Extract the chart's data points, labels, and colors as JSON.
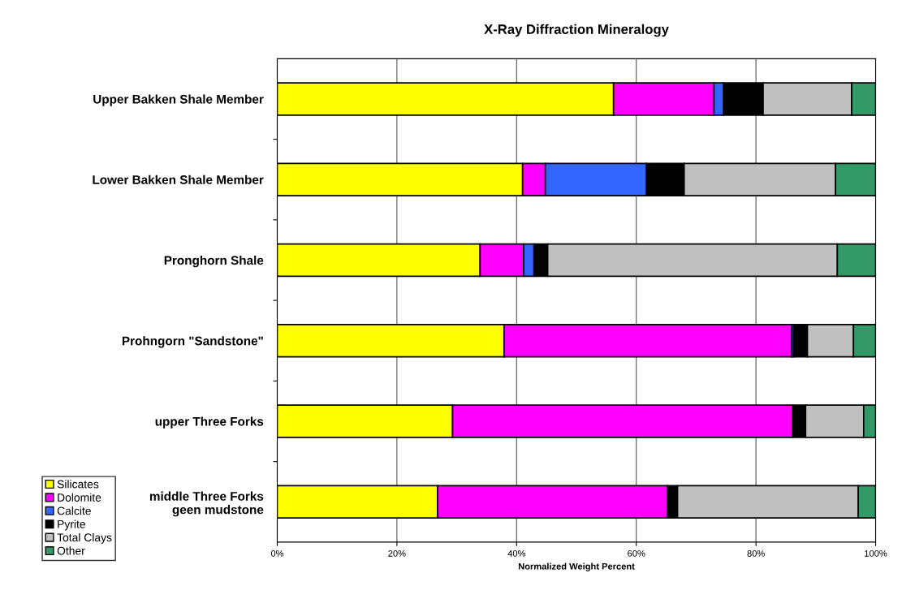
{
  "chart_data": {
    "type": "bar",
    "orientation": "horizontal",
    "stacked": true,
    "title": "X-Ray Diffraction Mineralogy",
    "xlabel": "Normalized Weight Percent",
    "categories": [
      "Upper Bakken Shale Member",
      "Lower Bakken Shale Member",
      "Pronghorn Shale",
      "Prohngorn \"Sandstone\"",
      "upper Three Forks",
      "middle Three Forks\ngeen mudstone"
    ],
    "series": [
      {
        "name": "Silicates",
        "color": "#ffff00",
        "values": [
          56.2,
          41.0,
          33.9,
          37.9,
          29.3,
          26.8
        ]
      },
      {
        "name": "Dolomite",
        "color": "#ff00ff",
        "values": [
          16.8,
          3.8,
          7.3,
          48.1,
          56.8,
          38.4
        ]
      },
      {
        "name": "Calcite",
        "color": "#3366ff",
        "values": [
          1.6,
          16.9,
          1.7,
          0.3,
          null,
          null
        ]
      },
      {
        "name": "Pyrite",
        "color": "#000000",
        "values": [
          6.6,
          6.3,
          2.3,
          2.3,
          2.2,
          1.7
        ]
      },
      {
        "name": "Total Clays",
        "color": "#c0c0c0",
        "values": [
          14.8,
          25.3,
          48.4,
          7.7,
          9.7,
          30.2
        ]
      },
      {
        "name": "Other",
        "color": "#339966",
        "values": [
          4.0,
          6.7,
          6.4,
          3.7,
          2.0,
          2.9
        ]
      }
    ],
    "xlim": [
      0,
      100
    ],
    "xticks": [
      {
        "value": 0,
        "label": "0%"
      },
      {
        "value": 20,
        "label": "20%"
      },
      {
        "value": 40,
        "label": "40%"
      },
      {
        "value": 60,
        "label": "60%"
      },
      {
        "value": 80,
        "label": "80%"
      },
      {
        "value": 100,
        "label": "100%"
      }
    ],
    "grid": "x",
    "legend": "bottom left"
  }
}
